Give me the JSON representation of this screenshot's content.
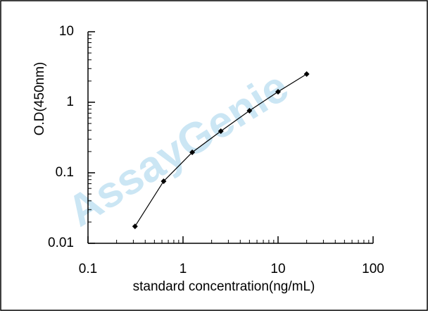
{
  "chart_data": {
    "type": "line",
    "x_label": "standard concentration(ng/mL)",
    "y_label": "O.D(450nm)",
    "watermark": "AssayGenie",
    "x": [
      0.3125,
      0.625,
      1.25,
      2.5,
      5,
      10,
      20
    ],
    "series": [
      {
        "color": "#000000",
        "values": [
          0.0174,
          0.0759,
          0.195,
          0.389,
          0.759,
          1.41,
          2.51
        ]
      }
    ],
    "xlim": [
      0.1,
      100
    ],
    "xticks": [
      0.1,
      1,
      10,
      100
    ],
    "ylim": [
      0.01,
      10
    ],
    "yticks": [
      0.01,
      0.1,
      1,
      10
    ],
    "xscale": "log",
    "yscale": "log",
    "grid": false
  }
}
